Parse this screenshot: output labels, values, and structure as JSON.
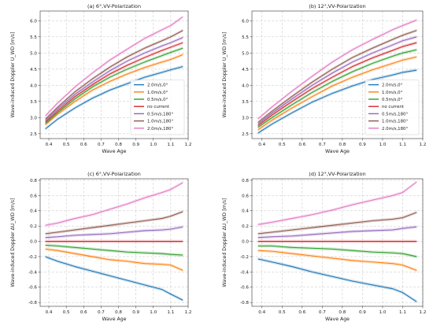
{
  "chart_data": [
    {
      "type": "line",
      "title": "(a) 6°,VV-Polarization",
      "xlabel": "Wave Age",
      "ylabel": "Wave-induced Doppler U_WD [m/s]",
      "xlim": [
        0.35,
        1.2
      ],
      "ylim": [
        2.35,
        6.3
      ],
      "xticks": [
        0.4,
        0.5,
        0.6,
        0.7,
        0.8,
        0.9,
        1.0,
        1.1,
        1.2
      ],
      "yticks": [
        2.5,
        3.0,
        3.5,
        4.0,
        4.5,
        5.0,
        5.5,
        6.0
      ],
      "grid": true,
      "legend": "lower-right",
      "x": [
        0.38,
        0.45,
        0.55,
        0.65,
        0.75,
        0.85,
        0.95,
        1.05,
        1.1,
        1.17
      ],
      "series": [
        {
          "name": "2.0m/s,0°",
          "color": "#1f77b4",
          "values": [
            2.65,
            2.95,
            3.3,
            3.6,
            3.85,
            4.05,
            4.25,
            4.4,
            4.48,
            4.58
          ]
        },
        {
          "name": "1.0m/s,0°",
          "color": "#ff7f0e",
          "values": [
            2.78,
            3.1,
            3.5,
            3.85,
            4.12,
            4.35,
            4.55,
            4.72,
            4.8,
            4.95
          ]
        },
        {
          "name": "0.5m/s,0°",
          "color": "#2ca02c",
          "values": [
            2.82,
            3.15,
            3.58,
            3.95,
            4.25,
            4.5,
            4.72,
            4.92,
            5.02,
            5.15
          ]
        },
        {
          "name": "no current",
          "color": "#d62728",
          "values": [
            2.86,
            3.2,
            3.65,
            4.02,
            4.35,
            4.62,
            4.86,
            5.08,
            5.18,
            5.32
          ]
        },
        {
          "name": "0.5m/s,180°",
          "color": "#9467bd",
          "values": [
            2.9,
            3.26,
            3.72,
            4.1,
            4.45,
            4.75,
            5.0,
            5.22,
            5.32,
            5.48
          ]
        },
        {
          "name": "1.0m/s,180°",
          "color": "#8c564b",
          "values": [
            2.95,
            3.32,
            3.8,
            4.2,
            4.56,
            4.88,
            5.15,
            5.38,
            5.5,
            5.7
          ]
        },
        {
          "name": "2.0m/s,180°",
          "color": "#e377c2",
          "values": [
            3.05,
            3.45,
            3.95,
            4.38,
            4.78,
            5.12,
            5.45,
            5.72,
            5.85,
            6.12
          ]
        }
      ]
    },
    {
      "type": "line",
      "title": "(b) 12°,VV-Polarization",
      "xlabel": "Wave Age",
      "ylabel": "Wave-induced Doppler U_WD [m/s]",
      "xlim": [
        0.35,
        1.2
      ],
      "ylim": [
        2.35,
        6.3
      ],
      "xticks": [
        0.4,
        0.5,
        0.6,
        0.7,
        0.8,
        0.9,
        1.0,
        1.1,
        1.2
      ],
      "yticks": [
        2.5,
        3.0,
        3.5,
        4.0,
        4.5,
        5.0,
        5.5,
        6.0
      ],
      "grid": true,
      "legend": "lower-right",
      "x": [
        0.38,
        0.45,
        0.55,
        0.65,
        0.75,
        0.85,
        0.95,
        1.05,
        1.1,
        1.17
      ],
      "series": [
        {
          "name": "2.0m/s,0°",
          "color": "#1f77b4",
          "values": [
            2.52,
            2.8,
            3.15,
            3.48,
            3.75,
            3.98,
            4.18,
            4.32,
            4.4,
            4.47
          ]
        },
        {
          "name": "1.0m/s,0°",
          "color": "#ff7f0e",
          "values": [
            2.62,
            2.92,
            3.3,
            3.65,
            3.98,
            4.25,
            4.48,
            4.68,
            4.78,
            4.88
          ]
        },
        {
          "name": "0.5m/s,0°",
          "color": "#2ca02c",
          "values": [
            2.7,
            3.0,
            3.4,
            3.78,
            4.12,
            4.42,
            4.68,
            4.9,
            5.0,
            5.1
          ]
        },
        {
          "name": "no current",
          "color": "#d62728",
          "values": [
            2.75,
            3.08,
            3.5,
            3.9,
            4.25,
            4.58,
            4.85,
            5.08,
            5.2,
            5.32
          ]
        },
        {
          "name": "0.5m/s,180°",
          "color": "#9467bd",
          "values": [
            2.8,
            3.14,
            3.58,
            4.0,
            4.38,
            4.72,
            5.0,
            5.25,
            5.38,
            5.5
          ]
        },
        {
          "name": "1.0m/s,180°",
          "color": "#8c564b",
          "values": [
            2.85,
            3.2,
            3.66,
            4.1,
            4.5,
            4.86,
            5.15,
            5.42,
            5.55,
            5.7
          ]
        },
        {
          "name": "2.0m/s,180°",
          "color": "#e377c2",
          "values": [
            2.96,
            3.33,
            3.82,
            4.28,
            4.72,
            5.1,
            5.42,
            5.72,
            5.85,
            6.02
          ]
        }
      ]
    },
    {
      "type": "line",
      "title": "(c) 6°,VV-Polarization",
      "xlabel": "Wave Age",
      "ylabel": "Wave-induced Doppler ΔU_WD [m/s]",
      "xlim": [
        0.35,
        1.2
      ],
      "ylim": [
        -0.85,
        0.82
      ],
      "xticks": [
        0.4,
        0.5,
        0.6,
        0.7,
        0.8,
        0.9,
        1.0,
        1.1,
        1.2
      ],
      "yticks": [
        -0.8,
        -0.6,
        -0.4,
        -0.2,
        0.0,
        0.2,
        0.4,
        0.6,
        0.8
      ],
      "grid": true,
      "x": [
        0.38,
        0.45,
        0.55,
        0.65,
        0.75,
        0.85,
        0.95,
        1.05,
        1.1,
        1.17
      ],
      "series": [
        {
          "color": "#1f77b4",
          "values": [
            -0.2,
            -0.26,
            -0.33,
            -0.39,
            -0.45,
            -0.51,
            -0.57,
            -0.63,
            -0.69,
            -0.77
          ]
        },
        {
          "color": "#ff7f0e",
          "values": [
            -0.1,
            -0.12,
            -0.16,
            -0.2,
            -0.24,
            -0.26,
            -0.29,
            -0.3,
            -0.31,
            -0.38
          ]
        },
        {
          "color": "#2ca02c",
          "values": [
            -0.05,
            -0.06,
            -0.08,
            -0.1,
            -0.12,
            -0.14,
            -0.15,
            -0.16,
            -0.17,
            -0.18
          ]
        },
        {
          "color": "#d62728",
          "values": [
            0.0,
            0.0,
            0.0,
            0.0,
            0.0,
            0.0,
            0.0,
            0.0,
            0.0,
            0.0
          ]
        },
        {
          "color": "#9467bd",
          "values": [
            0.05,
            0.06,
            0.08,
            0.09,
            0.1,
            0.12,
            0.14,
            0.15,
            0.16,
            0.19
          ]
        },
        {
          "color": "#8c564b",
          "values": [
            0.1,
            0.12,
            0.15,
            0.18,
            0.21,
            0.24,
            0.27,
            0.3,
            0.33,
            0.39
          ]
        },
        {
          "color": "#e377c2",
          "values": [
            0.21,
            0.24,
            0.3,
            0.35,
            0.42,
            0.49,
            0.57,
            0.64,
            0.68,
            0.77
          ]
        }
      ]
    },
    {
      "type": "line",
      "title": "(d) 12°,VV-Polarization",
      "xlabel": "Wave Age",
      "ylabel": "Wave-induced Doppler ΔU_WD [m/s]",
      "xlim": [
        0.35,
        1.2
      ],
      "ylim": [
        -0.85,
        0.82
      ],
      "xticks": [
        0.4,
        0.5,
        0.6,
        0.7,
        0.8,
        0.9,
        1.0,
        1.1,
        1.2
      ],
      "yticks": [
        -0.8,
        -0.6,
        -0.4,
        -0.2,
        0.0,
        0.2,
        0.4,
        0.6,
        0.8
      ],
      "grid": true,
      "x": [
        0.38,
        0.45,
        0.55,
        0.65,
        0.75,
        0.85,
        0.95,
        1.05,
        1.1,
        1.17
      ],
      "series": [
        {
          "color": "#1f77b4",
          "values": [
            -0.23,
            -0.27,
            -0.33,
            -0.4,
            -0.46,
            -0.52,
            -0.57,
            -0.62,
            -0.67,
            -0.79
          ]
        },
        {
          "color": "#ff7f0e",
          "values": [
            -0.12,
            -0.13,
            -0.16,
            -0.19,
            -0.22,
            -0.25,
            -0.27,
            -0.29,
            -0.31,
            -0.38
          ]
        },
        {
          "color": "#2ca02c",
          "values": [
            -0.06,
            -0.06,
            -0.08,
            -0.09,
            -0.1,
            -0.12,
            -0.14,
            -0.15,
            -0.16,
            -0.2
          ]
        },
        {
          "color": "#d62728",
          "values": [
            0.0,
            0.0,
            0.0,
            0.0,
            0.0,
            0.0,
            0.0,
            0.0,
            0.0,
            0.0
          ]
        },
        {
          "color": "#9467bd",
          "values": [
            0.05,
            0.06,
            0.07,
            0.09,
            0.11,
            0.13,
            0.14,
            0.15,
            0.17,
            0.19
          ]
        },
        {
          "color": "#8c564b",
          "values": [
            0.1,
            0.12,
            0.15,
            0.18,
            0.21,
            0.24,
            0.27,
            0.29,
            0.31,
            0.38
          ]
        },
        {
          "color": "#e377c2",
          "values": [
            0.22,
            0.25,
            0.3,
            0.35,
            0.41,
            0.48,
            0.54,
            0.6,
            0.64,
            0.78
          ]
        }
      ]
    }
  ]
}
